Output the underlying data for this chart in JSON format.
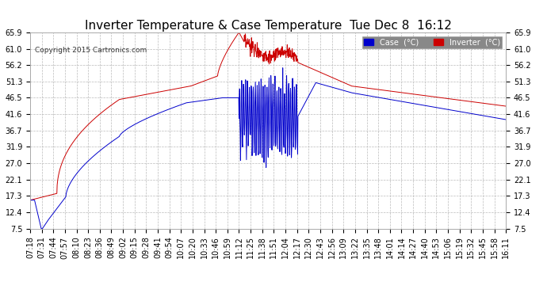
{
  "title": "Inverter Temperature & Case Temperature  Tue Dec 8  16:12",
  "copyright": "Copyright 2015 Cartronics.com",
  "yticks": [
    7.5,
    12.4,
    17.3,
    22.1,
    27.0,
    31.9,
    36.7,
    41.6,
    46.5,
    51.3,
    56.2,
    61.0,
    65.9
  ],
  "ylim": [
    7.5,
    65.9
  ],
  "background_color": "#ffffff",
  "grid_color": "#bbbbbb",
  "case_color": "#0000cc",
  "inverter_color": "#cc0000",
  "title_fontsize": 11,
  "tick_fontsize": 7,
  "xtick_labels": [
    "07:18",
    "07:31",
    "07:44",
    "07:57",
    "08:10",
    "08:23",
    "08:36",
    "08:49",
    "09:02",
    "09:15",
    "09:28",
    "09:41",
    "09:54",
    "10:07",
    "10:20",
    "10:33",
    "10:46",
    "10:59",
    "11:12",
    "11:25",
    "11:38",
    "11:51",
    "12:04",
    "12:17",
    "12:30",
    "12:43",
    "12:56",
    "13:09",
    "13:22",
    "13:35",
    "13:48",
    "14:01",
    "14:14",
    "14:27",
    "14:40",
    "14:53",
    "15:06",
    "15:19",
    "15:32",
    "15:45",
    "15:58",
    "16:11"
  ]
}
